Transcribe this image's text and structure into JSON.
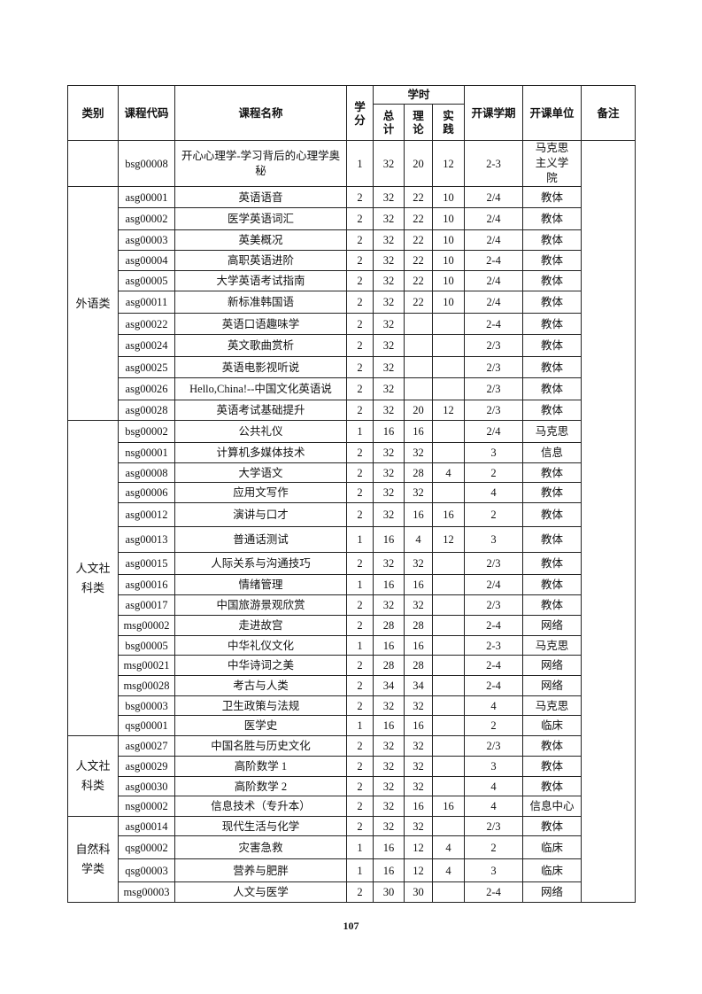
{
  "header": {
    "category": "类别",
    "code": "课程代码",
    "name": "课程名称",
    "credit": "学分",
    "hours": "学时",
    "total": "总计",
    "theory": "理论",
    "practice": "实践",
    "semester": "开课学期",
    "unit": "开课单位",
    "remark": "备注"
  },
  "groups": [
    {
      "category": "",
      "rows": [
        {
          "code": "bsg00008",
          "name": "开心心理学-学习背后的心理学奥秘",
          "credit": "1",
          "total": "32",
          "theory": "20",
          "practice": "12",
          "semester": "2-3",
          "unit": "马克思主义学院"
        }
      ]
    },
    {
      "category": "外语类",
      "rows": [
        {
          "code": "asg00001",
          "name": "英语语音",
          "credit": "2",
          "total": "32",
          "theory": "22",
          "practice": "10",
          "semester": "2/4",
          "unit": "教体"
        },
        {
          "code": "asg00002",
          "name": "医学英语词汇",
          "credit": "2",
          "total": "32",
          "theory": "22",
          "practice": "10",
          "semester": "2/4",
          "unit": "教体"
        },
        {
          "code": "asg00003",
          "name": "英美概况",
          "credit": "2",
          "total": "32",
          "theory": "22",
          "practice": "10",
          "semester": "2/4",
          "unit": "教体"
        },
        {
          "code": "asg00004",
          "name": "高职英语进阶",
          "credit": "2",
          "total": "32",
          "theory": "22",
          "practice": "10",
          "semester": "2-4",
          "unit": "教体"
        },
        {
          "code": "asg00005",
          "name": "大学英语考试指南",
          "credit": "2",
          "total": "32",
          "theory": "22",
          "practice": "10",
          "semester": "2/4",
          "unit": "教体"
        },
        {
          "code": "asg00011",
          "name": "新标准韩国语",
          "credit": "2",
          "total": "32",
          "theory": "22",
          "practice": "10",
          "semester": "2/4",
          "unit": "教体"
        },
        {
          "code": "asg00022",
          "name": "英语口语趣味学",
          "credit": "2",
          "total": "32",
          "theory": "",
          "practice": "",
          "semester": "2-4",
          "unit": "教体"
        },
        {
          "code": "asg00024",
          "name": "英文歌曲赏析",
          "credit": "2",
          "total": "32",
          "theory": "",
          "practice": "",
          "semester": "2/3",
          "unit": "教体"
        },
        {
          "code": "asg00025",
          "name": "英语电影视听说",
          "credit": "2",
          "total": "32",
          "theory": "",
          "practice": "",
          "semester": "2/3",
          "unit": "教体"
        },
        {
          "code": "asg00026",
          "name": "Hello,China!--中国文化英语说",
          "credit": "2",
          "total": "32",
          "theory": "",
          "practice": "",
          "semester": "2/3",
          "unit": "教体"
        },
        {
          "code": "asg00028",
          "name": "英语考试基础提升",
          "credit": "2",
          "total": "32",
          "theory": "20",
          "practice": "12",
          "semester": "2/3",
          "unit": "教体"
        }
      ]
    },
    {
      "category": "人文社科类",
      "rows": [
        {
          "code": "bsg00002",
          "name": "公共礼仪",
          "credit": "1",
          "total": "16",
          "theory": "16",
          "practice": "",
          "semester": "2/4",
          "unit": "马克思"
        },
        {
          "code": "nsg00001",
          "name": "计算机多媒体技术",
          "credit": "2",
          "total": "32",
          "theory": "32",
          "practice": "",
          "semester": "3",
          "unit": "信息"
        },
        {
          "code": "asg00008",
          "name": "大学语文",
          "credit": "2",
          "total": "32",
          "theory": "28",
          "practice": "4",
          "semester": "2",
          "unit": "教体"
        },
        {
          "code": "asg00006",
          "name": "应用文写作",
          "credit": "2",
          "total": "32",
          "theory": "32",
          "practice": "",
          "semester": "4",
          "unit": "教体"
        },
        {
          "code": "asg00012",
          "name": "演讲与口才",
          "credit": "2",
          "total": "32",
          "theory": "16",
          "practice": "16",
          "semester": "2",
          "unit": "教体"
        },
        {
          "code": "asg00013",
          "name": "普通话测试",
          "credit": "1",
          "total": "16",
          "theory": "4",
          "practice": "12",
          "semester": "3",
          "unit": "教体"
        },
        {
          "code": "asg00015",
          "name": "人际关系与沟通技巧",
          "credit": "2",
          "total": "32",
          "theory": "32",
          "practice": "",
          "semester": "2/3",
          "unit": "教体"
        },
        {
          "code": "asg00016",
          "name": "情绪管理",
          "credit": "1",
          "total": "16",
          "theory": "16",
          "practice": "",
          "semester": "2/4",
          "unit": "教体"
        },
        {
          "code": "asg00017",
          "name": "中国旅游景观欣赏",
          "credit": "2",
          "total": "32",
          "theory": "32",
          "practice": "",
          "semester": "2/3",
          "unit": "教体"
        },
        {
          "code": "msg00002",
          "name": "走进故宫",
          "credit": "2",
          "total": "28",
          "theory": "28",
          "practice": "",
          "semester": "2-4",
          "unit": "网络"
        },
        {
          "code": "bsg00005",
          "name": "中华礼仪文化",
          "credit": "1",
          "total": "16",
          "theory": "16",
          "practice": "",
          "semester": "2-3",
          "unit": "马克思"
        },
        {
          "code": "msg00021",
          "name": "中华诗词之美",
          "credit": "2",
          "total": "28",
          "theory": "28",
          "practice": "",
          "semester": "2-4",
          "unit": "网络"
        },
        {
          "code": "msg00028",
          "name": "考古与人类",
          "credit": "2",
          "total": "34",
          "theory": "34",
          "practice": "",
          "semester": "2-4",
          "unit": "网络"
        },
        {
          "code": "bsg00003",
          "name": "卫生政策与法规",
          "credit": "2",
          "total": "32",
          "theory": "32",
          "practice": "",
          "semester": "4",
          "unit": "马克思"
        },
        {
          "code": "qsg00001",
          "name": "医学史",
          "credit": "1",
          "total": "16",
          "theory": "16",
          "practice": "",
          "semester": "2",
          "unit": "临床"
        }
      ]
    },
    {
      "category": "人文社科类",
      "rows": [
        {
          "code": "asg00027",
          "name": "中国名胜与历史文化",
          "credit": "2",
          "total": "32",
          "theory": "32",
          "practice": "",
          "semester": "2/3",
          "unit": "教体"
        },
        {
          "code": "asg00029",
          "name": "高阶数学 1",
          "credit": "2",
          "total": "32",
          "theory": "32",
          "practice": "",
          "semester": "3",
          "unit": "教体"
        },
        {
          "code": "asg00030",
          "name": "高阶数学 2",
          "credit": "2",
          "total": "32",
          "theory": "32",
          "practice": "",
          "semester": "4",
          "unit": "教体"
        },
        {
          "code": "nsg00002",
          "name": "信息技术（专升本）",
          "credit": "2",
          "total": "32",
          "theory": "16",
          "practice": "16",
          "semester": "4",
          "unit": "信息中心"
        }
      ]
    },
    {
      "category": "自然科学类",
      "rows": [
        {
          "code": "asg00014",
          "name": "现代生活与化学",
          "credit": "2",
          "total": "32",
          "theory": "32",
          "practice": "",
          "semester": "2/3",
          "unit": "教体"
        },
        {
          "code": "qsg00002",
          "name": "灾害急救",
          "credit": "1",
          "total": "16",
          "theory": "12",
          "practice": "4",
          "semester": "2",
          "unit": "临床"
        },
        {
          "code": "qsg00003",
          "name": "营养与肥胖",
          "credit": "1",
          "total": "16",
          "theory": "12",
          "practice": "4",
          "semester": "3",
          "unit": "临床"
        },
        {
          "code": "msg00003",
          "name": "人文与医学",
          "credit": "2",
          "total": "30",
          "theory": "30",
          "practice": "",
          "semester": "2-4",
          "unit": "网络"
        }
      ]
    }
  ],
  "remark": "",
  "page_number": "107"
}
